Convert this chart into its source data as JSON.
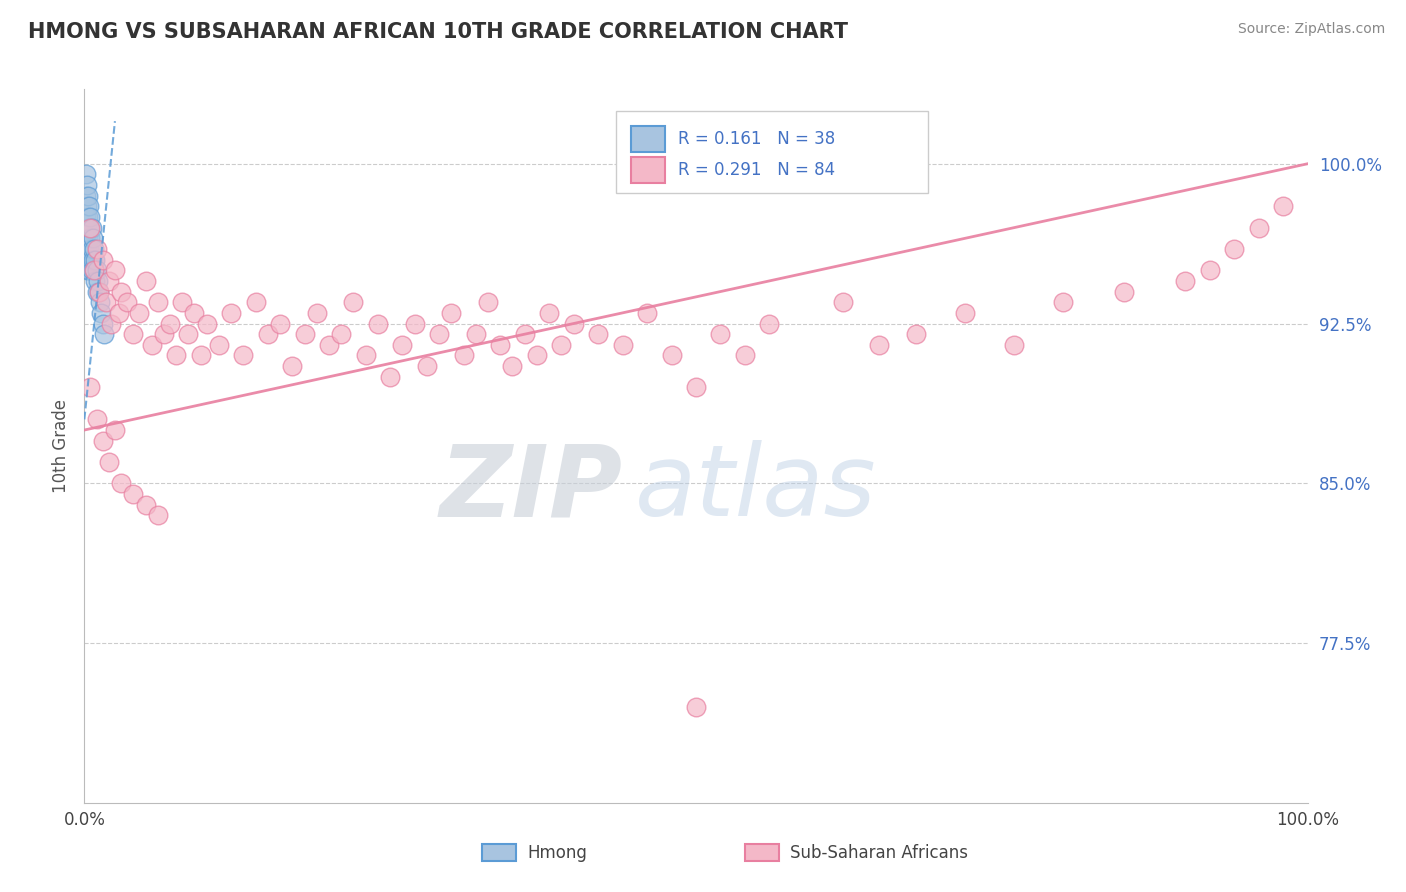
{
  "title": "HMONG VS SUBSAHARAN AFRICAN 10TH GRADE CORRELATION CHART",
  "source": "Source: ZipAtlas.com",
  "ylabel": "10th Grade",
  "xlim": [
    0.0,
    1.0
  ],
  "ylim": [
    0.7,
    1.035
  ],
  "ytick_positions": [
    0.775,
    0.85,
    0.925,
    1.0
  ],
  "ytick_labels": [
    "77.5%",
    "85.0%",
    "92.5%",
    "100.0%"
  ],
  "hmong_color": "#a8c4e0",
  "hmong_edge_color": "#5b9bd5",
  "pink_color": "#f4b8c8",
  "pink_edge_color": "#e87fa0",
  "hmong_R": 0.161,
  "hmong_N": 38,
  "pink_R": 0.291,
  "pink_N": 84,
  "legend_label_hmong": "Hmong",
  "legend_label_pink": "Sub-Saharan Africans",
  "watermark_zip": "ZIP",
  "watermark_atlas": "atlas",
  "blue_line_x": [
    0.0,
    0.025
  ],
  "blue_line_y": [
    0.88,
    1.02
  ],
  "pink_line_x": [
    0.0,
    1.0
  ],
  "pink_line_y": [
    0.875,
    1.0
  ],
  "hmong_x": [
    0.001,
    0.001,
    0.001,
    0.001,
    0.001,
    0.002,
    0.002,
    0.002,
    0.002,
    0.002,
    0.003,
    0.003,
    0.003,
    0.003,
    0.004,
    0.004,
    0.004,
    0.004,
    0.005,
    0.005,
    0.005,
    0.006,
    0.006,
    0.006,
    0.007,
    0.007,
    0.008,
    0.008,
    0.009,
    0.009,
    0.01,
    0.01,
    0.011,
    0.012,
    0.013,
    0.014,
    0.015,
    0.016
  ],
  "hmong_y": [
    0.995,
    0.985,
    0.975,
    0.965,
    0.955,
    0.99,
    0.98,
    0.97,
    0.96,
    0.95,
    0.985,
    0.975,
    0.965,
    0.955,
    0.98,
    0.97,
    0.96,
    0.95,
    0.975,
    0.965,
    0.955,
    0.97,
    0.96,
    0.95,
    0.965,
    0.955,
    0.96,
    0.95,
    0.955,
    0.945,
    0.95,
    0.94,
    0.945,
    0.94,
    0.935,
    0.93,
    0.925,
    0.92
  ],
  "pink_x": [
    0.005,
    0.008,
    0.01,
    0.012,
    0.015,
    0.018,
    0.02,
    0.022,
    0.025,
    0.028,
    0.03,
    0.035,
    0.04,
    0.045,
    0.05,
    0.055,
    0.06,
    0.065,
    0.07,
    0.075,
    0.08,
    0.085,
    0.09,
    0.095,
    0.1,
    0.11,
    0.12,
    0.13,
    0.14,
    0.15,
    0.16,
    0.17,
    0.18,
    0.19,
    0.2,
    0.21,
    0.22,
    0.23,
    0.24,
    0.25,
    0.26,
    0.27,
    0.28,
    0.29,
    0.3,
    0.31,
    0.32,
    0.33,
    0.34,
    0.35,
    0.36,
    0.37,
    0.38,
    0.39,
    0.4,
    0.42,
    0.44,
    0.46,
    0.48,
    0.5,
    0.52,
    0.54,
    0.56,
    0.62,
    0.65,
    0.68,
    0.72,
    0.76,
    0.8,
    0.85,
    0.9,
    0.92,
    0.94,
    0.96,
    0.98,
    0.005,
    0.01,
    0.015,
    0.02,
    0.025,
    0.03,
    0.04,
    0.05,
    0.06
  ],
  "pink_y": [
    0.97,
    0.95,
    0.96,
    0.94,
    0.955,
    0.935,
    0.945,
    0.925,
    0.95,
    0.93,
    0.94,
    0.935,
    0.92,
    0.93,
    0.945,
    0.915,
    0.935,
    0.92,
    0.925,
    0.91,
    0.935,
    0.92,
    0.93,
    0.91,
    0.925,
    0.915,
    0.93,
    0.91,
    0.935,
    0.92,
    0.925,
    0.905,
    0.92,
    0.93,
    0.915,
    0.92,
    0.935,
    0.91,
    0.925,
    0.9,
    0.915,
    0.925,
    0.905,
    0.92,
    0.93,
    0.91,
    0.92,
    0.935,
    0.915,
    0.905,
    0.92,
    0.91,
    0.93,
    0.915,
    0.925,
    0.92,
    0.915,
    0.93,
    0.91,
    0.895,
    0.92,
    0.91,
    0.925,
    0.935,
    0.915,
    0.92,
    0.93,
    0.915,
    0.935,
    0.94,
    0.945,
    0.95,
    0.96,
    0.97,
    0.98,
    0.895,
    0.88,
    0.87,
    0.86,
    0.875,
    0.85,
    0.845,
    0.84,
    0.835
  ]
}
